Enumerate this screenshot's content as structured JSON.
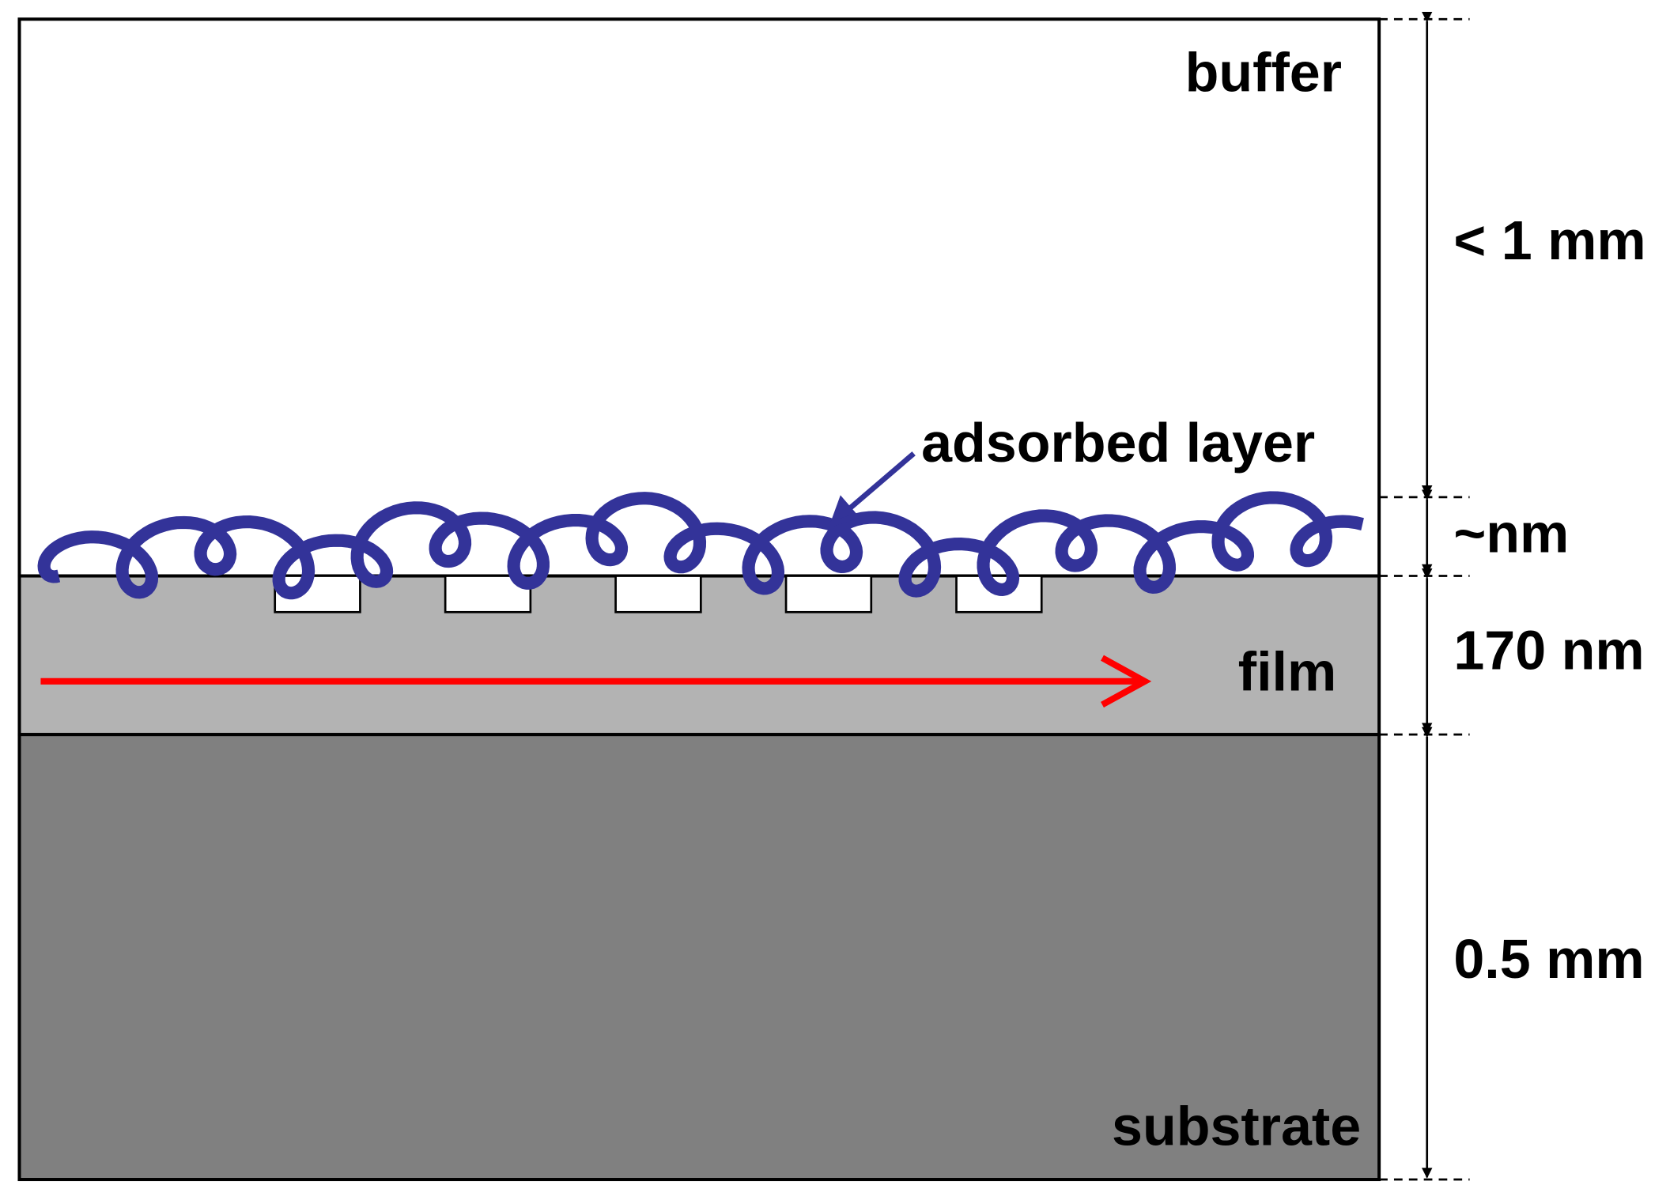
{
  "regions": {
    "buffer": {
      "label": "buffer"
    },
    "film": {
      "label": "film"
    },
    "substrate": {
      "label": "substrate"
    }
  },
  "annotation": {
    "label": "adsorbed layer"
  },
  "dimensions": [
    {
      "label": "< 1 mm"
    },
    {
      "label": "~nm"
    },
    {
      "label": "170 nm"
    },
    {
      "label": "0.5 mm"
    }
  ]
}
